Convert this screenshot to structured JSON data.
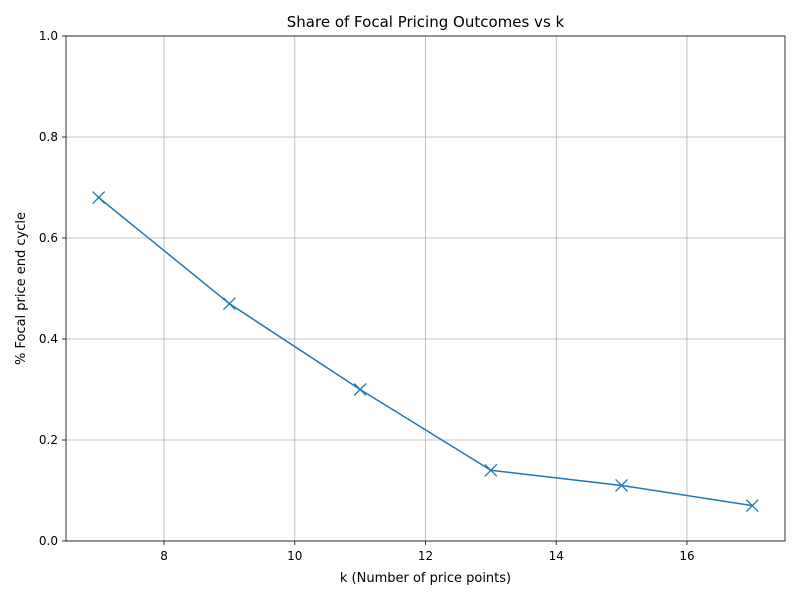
{
  "chart_data": {
    "type": "line",
    "title": "Share of Focal Pricing Outcomes vs k",
    "xlabel": "k (Number of price points)",
    "ylabel": "% Focal price end cycle",
    "x": [
      7,
      9,
      11,
      13,
      15,
      17
    ],
    "series": [
      {
        "values": [
          0.68,
          0.47,
          0.3,
          0.14,
          0.11,
          0.07
        ],
        "color": "#1f77b4",
        "marker": "x"
      }
    ],
    "xlim": [
      6.5,
      17.5
    ],
    "ylim": [
      0.0,
      1.0
    ],
    "xticks": [
      "8",
      "10",
      "12",
      "14",
      "16"
    ],
    "yticks": [
      "0.0",
      "0.2",
      "0.4",
      "0.6",
      "0.8",
      "1.0"
    ],
    "grid": true
  }
}
